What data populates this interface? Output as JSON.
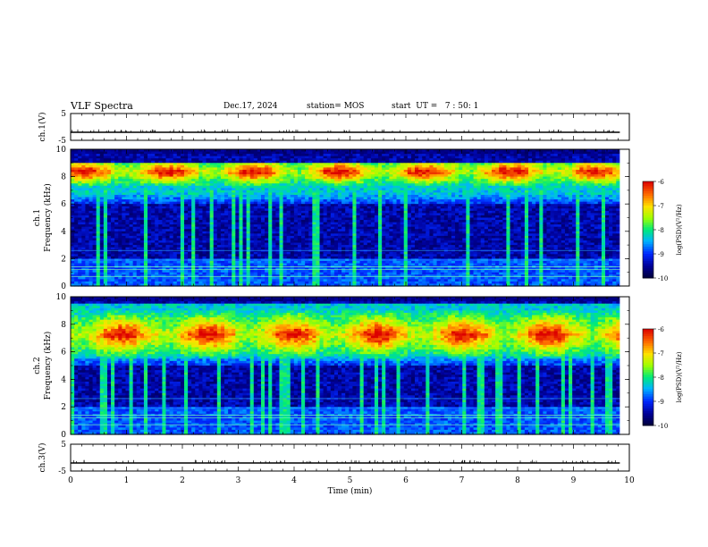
{
  "header": {
    "title": "VLF Spectra",
    "date": "Dec.17, 2024",
    "station": "station= MOS",
    "start_ut": "start  UT =   7 : 50: 1"
  },
  "chart_data": {
    "type": "heatmap",
    "title": "VLF Spectra",
    "x": {
      "label": "Time  (min)",
      "range": [
        0,
        10
      ],
      "ticks": [
        "0",
        "1",
        "2",
        "3",
        "4",
        "5",
        "6",
        "7",
        "8",
        "9",
        "10"
      ],
      "data_end": 9.83
    },
    "panels": [
      {
        "kind": "waveform",
        "ylabel": "ch.1(V)",
        "ylim": [
          -5,
          5
        ],
        "yticks": [
          "5",
          "-5"
        ],
        "baseline": -2
      },
      {
        "kind": "spectrogram",
        "ylabel": "ch.1\nFrequency  (kHz)",
        "ylim": [
          0,
          10
        ],
        "yticks": [
          "0",
          "2",
          "4",
          "6",
          "8",
          "10"
        ],
        "colorbar": {
          "label": "log(PSD)(V²/Hz)",
          "range": [
            -10,
            -6
          ],
          "ticks": [
            "-6",
            "-7",
            "-8",
            "-9",
            "-10"
          ]
        },
        "hiss_band_khz": [
          6,
          9
        ],
        "peak_band_khz": [
          7.8,
          8.9
        ],
        "seed": 7
      },
      {
        "kind": "spectrogram",
        "ylabel": "ch.2\nFrequency  (kHz)",
        "ylim": [
          0,
          10
        ],
        "yticks": [
          "0",
          "2",
          "4",
          "6",
          "8",
          "10"
        ],
        "colorbar": {
          "label": "log(PSD)(V²/Hz)",
          "range": [
            -10,
            -6
          ],
          "ticks": [
            "-6",
            "-7",
            "-8",
            "-9",
            "-10"
          ]
        },
        "hiss_band_khz": [
          5,
          9.5
        ],
        "peak_band_khz": [
          6,
          8.5
        ],
        "seed": 23
      },
      {
        "kind": "waveform",
        "ylabel": "ch.3(V)",
        "ylim": [
          -5,
          5
        ],
        "yticks": [
          "5",
          "-5"
        ],
        "baseline": -2
      }
    ]
  }
}
